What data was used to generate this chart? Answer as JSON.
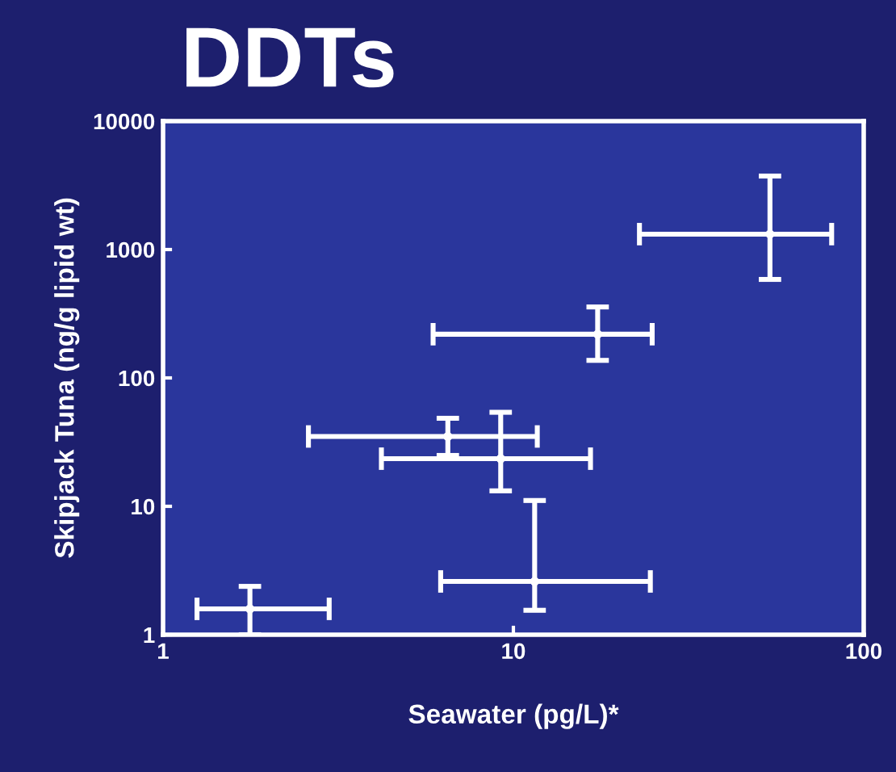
{
  "chart_data": {
    "type": "scatter",
    "title": "DDTs",
    "xlabel": "Seawater (pg/L)*",
    "ylabel": "Skipjack Tuna (ng/g lipid wt)",
    "log": "xy",
    "marker": "circle",
    "grid": false,
    "legend": false,
    "xlim": [
      1,
      100
    ],
    "xticks": [
      1,
      10,
      100
    ],
    "ylim": [
      1,
      10000
    ],
    "yticks": [
      1,
      10,
      100,
      1000,
      10000
    ],
    "series": [
      {
        "color": "#ffffff",
        "x": [
          54,
          17.4,
          6.5,
          9.2,
          11.5,
          1.77
        ],
        "values": [
          1318,
          219,
          35,
          23.5,
          2.6,
          1.59
        ],
        "xerrors": [
          [
            22.9,
            81
          ],
          [
            5.9,
            24.9
          ],
          [
            2.6,
            11.7
          ],
          [
            4.2,
            16.6
          ],
          [
            6.2,
            24.6
          ],
          [
            1.25,
            2.98
          ]
        ],
        "errors": [
          [
            585,
            3735
          ],
          [
            137,
            357
          ],
          [
            24.9,
            48.5
          ],
          [
            13.2,
            54
          ],
          [
            1.55,
            11.1
          ],
          [
            1,
            2.38
          ]
        ]
      }
    ]
  }
}
